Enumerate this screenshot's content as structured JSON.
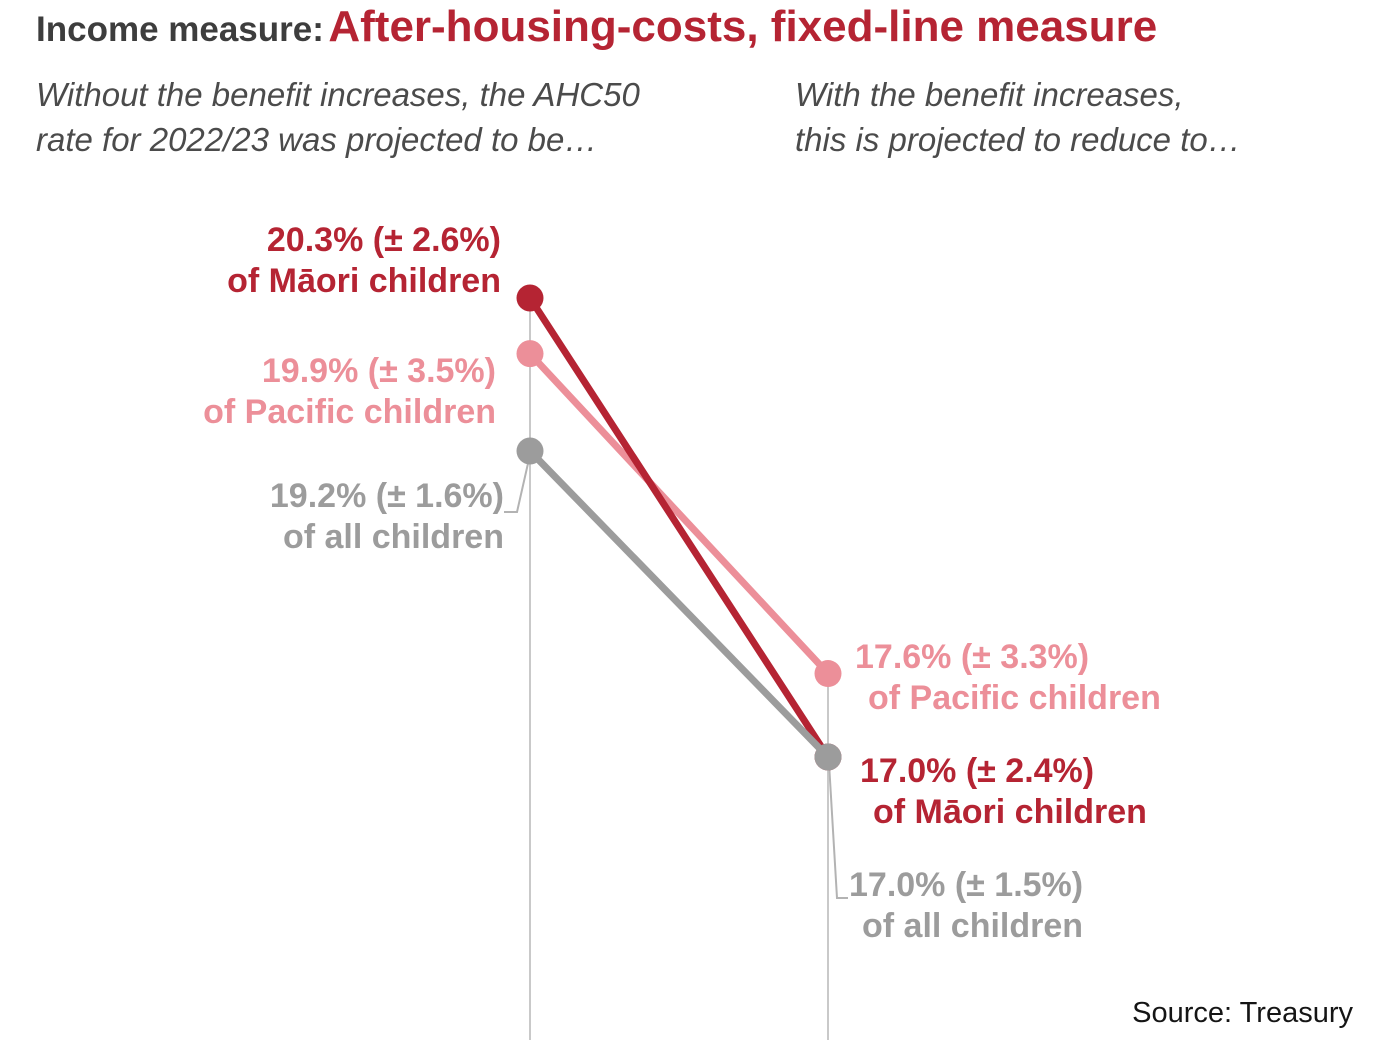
{
  "header": {
    "title_prefix": "Income measure:",
    "title_highlight": "After-housing-costs, fixed-line measure"
  },
  "annotations": {
    "left_line1": "Without the benefit increases, the AHC50",
    "left_line2": "rate for 2022/23 was projected to be…",
    "right_line1": "With the benefit increases,",
    "right_line2": "this is projected to reduce to…"
  },
  "source": "Source: Treasury",
  "colors": {
    "dark_red": "#b52433",
    "pink": "#ec8f99",
    "gray": "#9c9c9c",
    "gridline": "#c9c9c9",
    "leader": "#b3b3b3",
    "title_gray": "#3d3d3d",
    "annotation_gray": "#4b4b4b",
    "source_black": "#151515"
  },
  "chart_data": {
    "type": "line",
    "subtype": "slope",
    "title": "AHC50 child poverty rate, projected 2022/23",
    "categories": [
      "Without the benefit increases",
      "With the benefit increases"
    ],
    "unit": "%",
    "axis_visible": false,
    "legend": "none",
    "ylim": [
      16.5,
      21
    ],
    "series": [
      {
        "name": "Māori children",
        "color": "#b52433",
        "values": [
          20.3,
          17.0
        ],
        "margins_of_error": [
          2.6,
          2.4
        ],
        "labels": {
          "before_value": "20.3% (± 2.6%)",
          "before_group": "of Māori children",
          "after_value": "17.0% (± 2.4%)",
          "after_group": "of Māori children"
        }
      },
      {
        "name": "Pacific children",
        "color": "#ec8f99",
        "values": [
          19.9,
          17.6
        ],
        "margins_of_error": [
          3.5,
          3.3
        ],
        "labels": {
          "before_value": "19.9% (± 3.5%)",
          "before_group": "of Pacific children",
          "after_value": "17.6% (± 3.3%)",
          "after_group": "of Pacific children"
        }
      },
      {
        "name": "all children",
        "color": "#9c9c9c",
        "values": [
          19.2,
          17.0
        ],
        "margins_of_error": [
          1.6,
          1.5
        ],
        "labels": {
          "before_value": "19.2% (± 1.6%)",
          "before_group": "of all children",
          "after_value": "17.0% (± 1.5%)",
          "after_group": "of all children"
        }
      }
    ]
  }
}
